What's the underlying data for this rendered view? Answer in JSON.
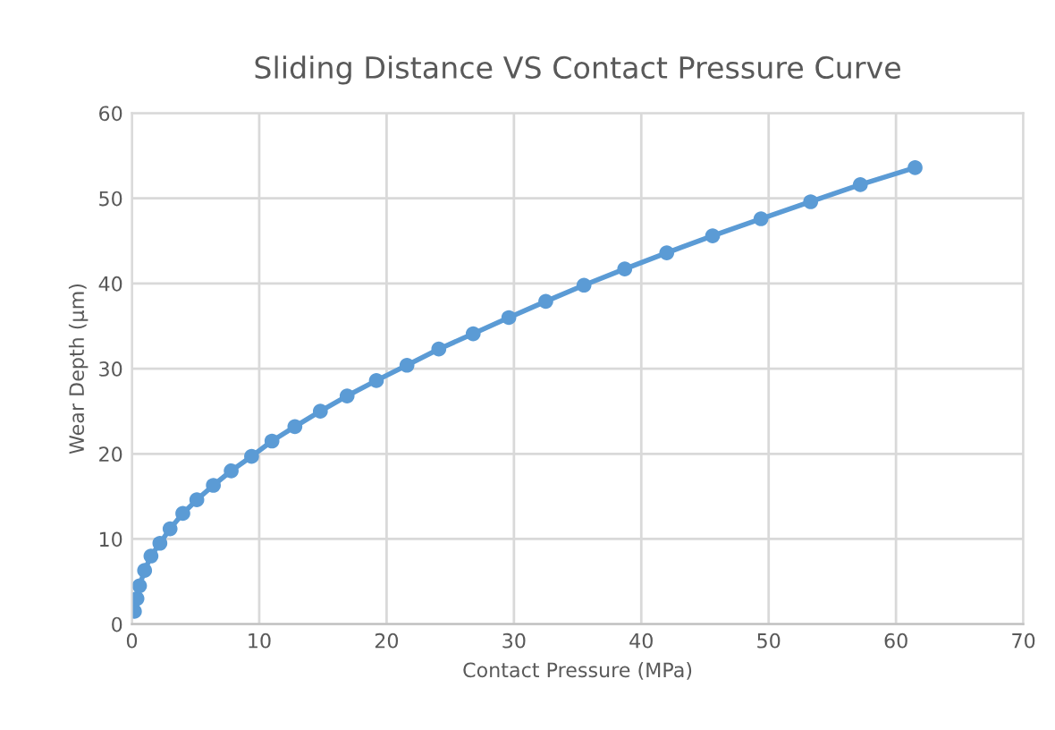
{
  "chart_data": {
    "type": "line",
    "title": "Sliding Distance VS Contact Pressure Curve",
    "xlabel": "Contact Pressure (MPa)",
    "ylabel": "Wear Depth (μm)",
    "x": [
      0.2,
      0.4,
      0.6,
      1.0,
      1.5,
      2.2,
      3.0,
      4.0,
      5.1,
      6.4,
      7.8,
      9.4,
      11.0,
      12.8,
      14.8,
      16.9,
      19.2,
      21.6,
      24.1,
      26.8,
      29.6,
      32.5,
      35.5,
      38.7,
      42.0,
      45.6,
      49.4,
      53.3,
      57.2,
      61.5
    ],
    "series": [
      {
        "color": "#5b9bd5",
        "values": [
          1.5,
          3,
          4.5,
          6.3,
          8,
          9.5,
          11.2,
          13,
          14.6,
          16.3,
          18,
          19.7,
          21.5,
          23.2,
          25,
          26.8,
          28.6,
          30.4,
          32.3,
          34.1,
          36,
          37.9,
          39.8,
          41.7,
          43.6,
          45.6,
          47.6,
          49.6,
          51.6,
          53.6
        ]
      }
    ],
    "xlim": [
      0,
      70
    ],
    "xticks": [
      0,
      10,
      20,
      30,
      40,
      50,
      60,
      70
    ],
    "ylim": [
      0,
      60
    ],
    "yticks": [
      0,
      10,
      20,
      30,
      40,
      50,
      60
    ],
    "grid": true,
    "marker": "circle",
    "line_style": "solid"
  }
}
